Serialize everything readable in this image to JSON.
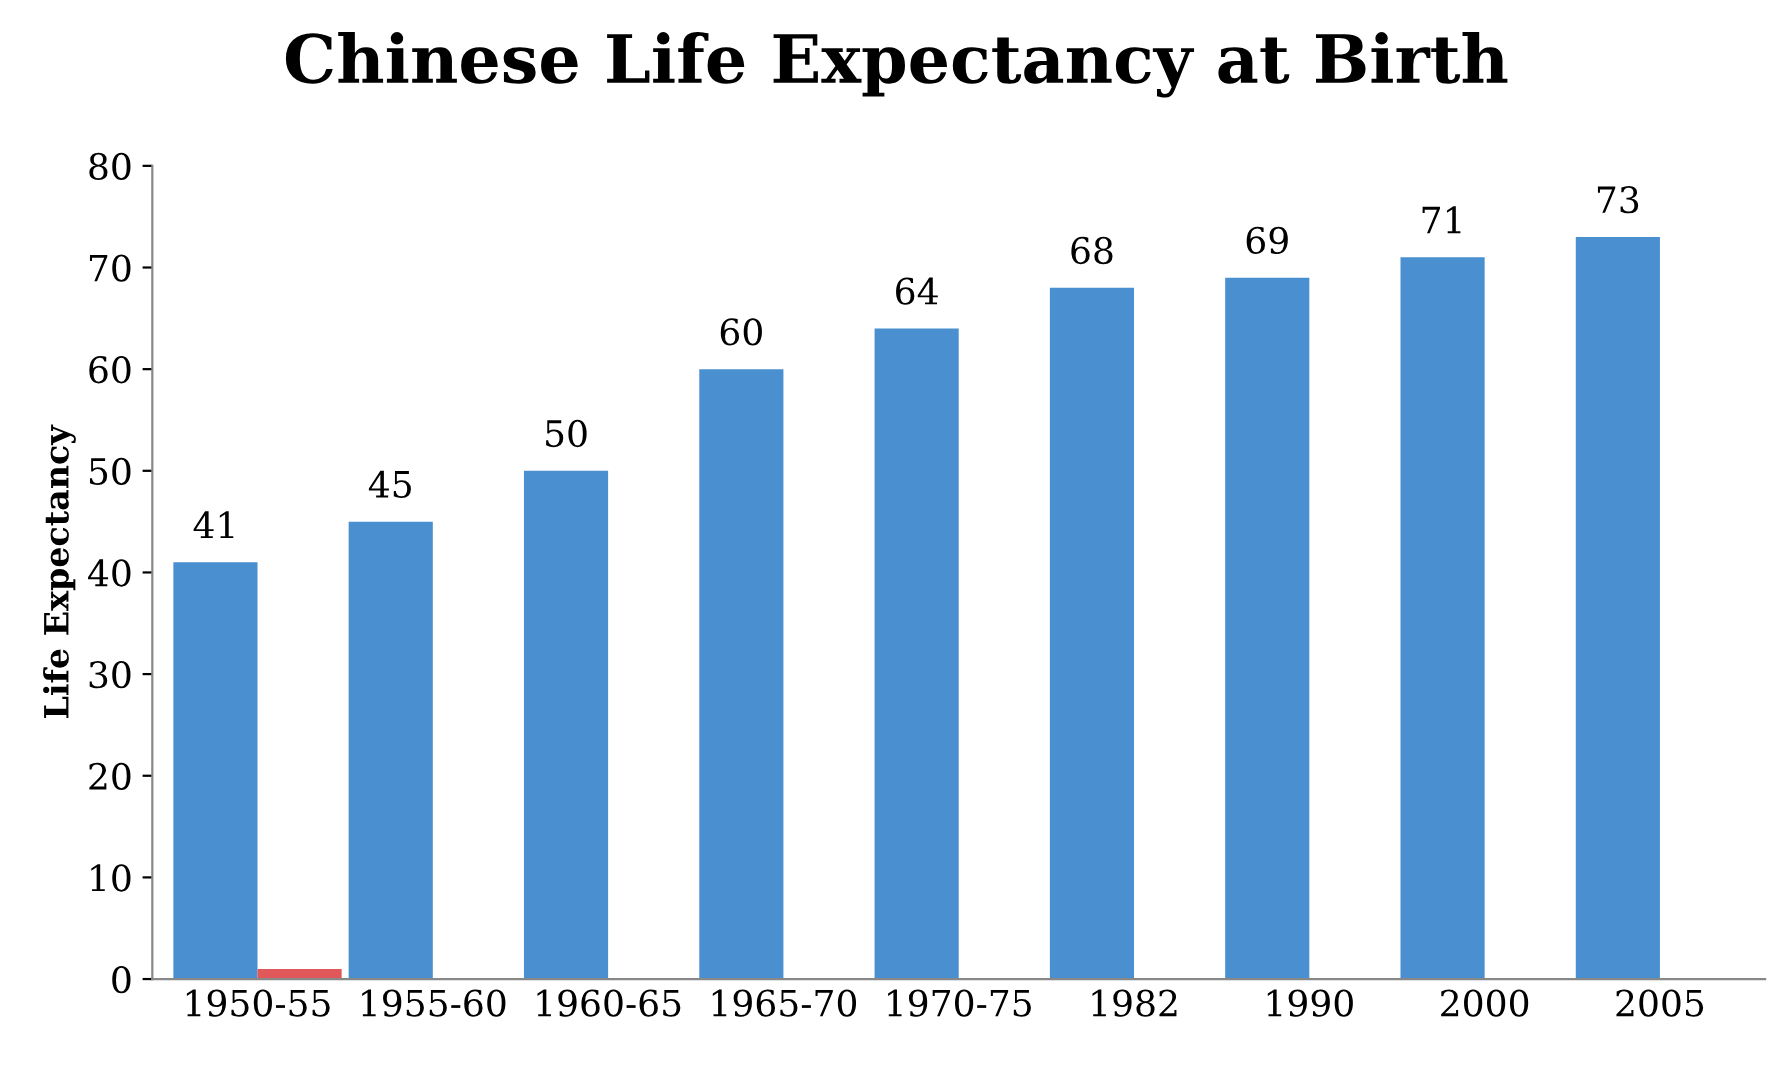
{
  "chart_data": {
    "type": "bar",
    "title": "Chinese Life Expectancy at Birth",
    "ylabel": "Life Expectancy",
    "categories": [
      "1950-55",
      "1955-60",
      "1960-65",
      "1965-70",
      "1970-75",
      "1982",
      "1990",
      "2000",
      "2005"
    ],
    "series": [
      {
        "color": "#4a8fd0",
        "values": [
          41,
          45,
          50,
          60,
          64,
          68,
          69,
          71,
          73
        ],
        "value_labels": [
          "41",
          "45",
          "50",
          "60",
          "64",
          "68",
          "69",
          "71",
          "73"
        ]
      },
      {
        "color": "#e0585a",
        "values": [
          1,
          null,
          null,
          null,
          null,
          null,
          null,
          null,
          null
        ]
      }
    ],
    "ylim": [
      0,
      80
    ],
    "yticks": [
      0,
      10,
      20,
      30,
      40,
      50,
      60,
      70,
      80
    ],
    "grid": false,
    "legend": false
  }
}
